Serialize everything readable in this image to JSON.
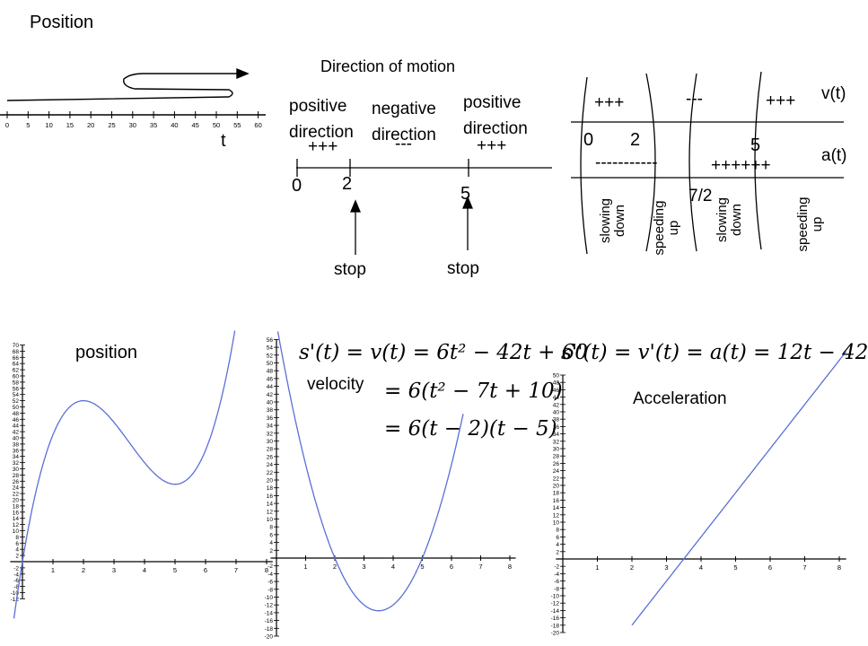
{
  "position_line": {
    "title": "Position",
    "axis_label": "t",
    "ticks": [
      "0",
      "5",
      "10",
      "15",
      "20",
      "25",
      "30",
      "35",
      "40",
      "45",
      "50",
      "55",
      "60"
    ]
  },
  "direction": {
    "title": "Direction of motion",
    "labels": [
      "positive direction",
      "negative direction",
      "positive direction"
    ],
    "signs": [
      "+++",
      "---",
      "+++"
    ],
    "points": [
      "0",
      "2",
      "5"
    ],
    "stops": [
      "stop",
      "stop"
    ]
  },
  "sign_chart": {
    "v_label": "v(t)",
    "a_label": "a(t)",
    "v_signs": [
      "+++",
      "---",
      "+++"
    ],
    "a_signs": [
      "-----------",
      "++++++"
    ],
    "numbers": [
      "0",
      "2",
      "5",
      "7/2"
    ],
    "regions": [
      "slowing down",
      "speeding up",
      "slowing down",
      "speeding up"
    ]
  },
  "graphs": {
    "position_label": "position",
    "velocity_label": "velocity",
    "acceleration_label": "Acceleration",
    "velocity_eq": [
      "s'(t) = v(t) = 6t² − 42t + 60",
      "= 6(t² − 7t + 10)",
      "= 6(t − 2)(t − 5)"
    ],
    "acceleration_eq": "s''(t) = v'(t) = a(t) = 12t − 42"
  },
  "chart_data": [
    {
      "type": "line",
      "title": "",
      "series": [
        {
          "name": "position",
          "fn": "2t^3 - 21t^2 + 60t"
        }
      ],
      "x_ticks": [
        1,
        2,
        3,
        4,
        5,
        6,
        7,
        8
      ],
      "xlim": [
        -0.4,
        8.2
      ],
      "ylim": [
        -12,
        70
      ]
    },
    {
      "type": "line",
      "title": "",
      "series": [
        {
          "name": "velocity",
          "fn": "6t^2 - 42t + 60"
        }
      ],
      "x_ticks": [
        1,
        2,
        3,
        4,
        5,
        6,
        7,
        8
      ],
      "xlim": [
        -0.2,
        8.2
      ],
      "ylim": [
        -20,
        56
      ]
    },
    {
      "type": "line",
      "title": "",
      "series": [
        {
          "name": "Acceleration",
          "fn": "12t - 42"
        }
      ],
      "x_ticks": [
        1,
        2,
        3,
        4,
        5,
        6,
        7,
        8
      ],
      "xlim": [
        -0.2,
        8.2
      ],
      "ylim": [
        -20,
        50
      ]
    }
  ],
  "colors": {
    "curve": "#5a6fd6",
    "ink": "#000000"
  }
}
